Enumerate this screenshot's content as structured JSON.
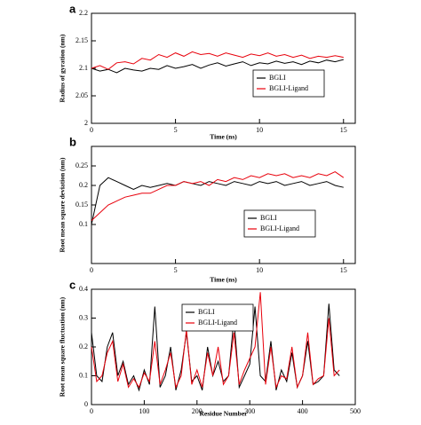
{
  "chart_data": [
    {
      "type": "line",
      "panel_label": "a",
      "x_label": "Time (ns)",
      "y_label": "Radius of gyration (nm)",
      "x": [
        0,
        0.5,
        1,
        1.5,
        2,
        2.5,
        3,
        3.5,
        4,
        4.5,
        5,
        5.5,
        6,
        6.5,
        7,
        7.5,
        8,
        8.5,
        9,
        9.5,
        10,
        10.5,
        11,
        11.5,
        12,
        12.5,
        13,
        13.5,
        14,
        14.5,
        15
      ],
      "series": [
        {
          "name": "BGLI",
          "color": "#000000",
          "values": [
            2.1,
            2.095,
            2.098,
            2.092,
            2.1,
            2.097,
            2.095,
            2.1,
            2.098,
            2.105,
            2.1,
            2.103,
            2.107,
            2.1,
            2.106,
            2.11,
            2.104,
            2.108,
            2.112,
            2.105,
            2.11,
            2.108,
            2.113,
            2.109,
            2.112,
            2.107,
            2.113,
            2.11,
            2.115,
            2.112,
            2.116
          ]
        },
        {
          "name": "BGLI-Ligand",
          "color": "#e8000b",
          "values": [
            2.1,
            2.105,
            2.098,
            2.11,
            2.112,
            2.108,
            2.118,
            2.115,
            2.125,
            2.12,
            2.128,
            2.122,
            2.13,
            2.125,
            2.127,
            2.122,
            2.128,
            2.124,
            2.12,
            2.126,
            2.123,
            2.128,
            2.122,
            2.125,
            2.12,
            2.124,
            2.118,
            2.122,
            2.12,
            2.123,
            2.12
          ]
        }
      ],
      "xlim": [
        0,
        15.7
      ],
      "ylim": [
        2,
        2.2
      ],
      "xticks": [
        0,
        5,
        10,
        15
      ],
      "yticks": [
        2,
        2.05,
        2.1,
        2.15,
        2.2
      ],
      "legend": "center right"
    },
    {
      "type": "line",
      "panel_label": "b",
      "x_label": "Time (ns)",
      "y_label": "Root mean square deviation (nm)",
      "x": [
        0,
        0.5,
        1,
        1.5,
        2,
        2.5,
        3,
        3.5,
        4,
        4.5,
        5,
        5.5,
        6,
        6.5,
        7,
        7.5,
        8,
        8.5,
        9,
        9.5,
        10,
        10.5,
        11,
        11.5,
        12,
        12.5,
        13,
        13.5,
        14,
        14.5,
        15
      ],
      "series": [
        {
          "name": "BGLI",
          "color": "#000000",
          "values": [
            0.1,
            0.2,
            0.22,
            0.21,
            0.2,
            0.19,
            0.2,
            0.195,
            0.2,
            0.205,
            0.2,
            0.21,
            0.205,
            0.2,
            0.21,
            0.205,
            0.2,
            0.21,
            0.205,
            0.2,
            0.21,
            0.205,
            0.21,
            0.2,
            0.205,
            0.21,
            0.2,
            0.205,
            0.21,
            0.2,
            0.195
          ]
        },
        {
          "name": "BGLI-Ligand",
          "color": "#e8000b",
          "values": [
            0.11,
            0.13,
            0.15,
            0.16,
            0.17,
            0.175,
            0.18,
            0.18,
            0.19,
            0.2,
            0.2,
            0.21,
            0.205,
            0.21,
            0.2,
            0.215,
            0.21,
            0.22,
            0.215,
            0.225,
            0.22,
            0.23,
            0.225,
            0.23,
            0.22,
            0.225,
            0.22,
            0.23,
            0.225,
            0.235,
            0.22
          ]
        }
      ],
      "xlim": [
        0,
        15.7
      ],
      "ylim": [
        0,
        0.3
      ],
      "xticks": [
        0,
        5,
        10,
        15
      ],
      "yticks": [
        0.1,
        0.15,
        0.2,
        0.25
      ],
      "legend": "lower right"
    },
    {
      "type": "line",
      "panel_label": "c",
      "x_label": "Residue Number",
      "y_label": "Root mean square fluctuation (nm)",
      "x": [
        0,
        10,
        20,
        30,
        40,
        50,
        60,
        70,
        80,
        90,
        100,
        110,
        120,
        130,
        140,
        150,
        160,
        170,
        180,
        190,
        200,
        210,
        220,
        230,
        240,
        250,
        260,
        270,
        280,
        290,
        300,
        310,
        320,
        330,
        340,
        350,
        360,
        370,
        380,
        390,
        400,
        410,
        420,
        430,
        440,
        450,
        460,
        470
      ],
      "series": [
        {
          "name": "BGLI",
          "color": "#000000",
          "values": [
            0.25,
            0.1,
            0.08,
            0.2,
            0.25,
            0.1,
            0.15,
            0.07,
            0.1,
            0.05,
            0.12,
            0.07,
            0.34,
            0.06,
            0.1,
            0.2,
            0.05,
            0.12,
            0.25,
            0.08,
            0.1,
            0.05,
            0.2,
            0.1,
            0.15,
            0.08,
            0.1,
            0.3,
            0.06,
            0.1,
            0.14,
            0.34,
            0.1,
            0.08,
            0.22,
            0.05,
            0.12,
            0.08,
            0.18,
            0.06,
            0.1,
            0.22,
            0.07,
            0.08,
            0.1,
            0.35,
            0.12,
            0.1
          ]
        },
        {
          "name": "BGLI-Ligand",
          "color": "#e8000b",
          "values": [
            0.2,
            0.08,
            0.1,
            0.18,
            0.22,
            0.08,
            0.14,
            0.06,
            0.09,
            0.06,
            0.11,
            0.08,
            0.22,
            0.07,
            0.12,
            0.18,
            0.06,
            0.1,
            0.26,
            0.07,
            0.12,
            0.06,
            0.18,
            0.1,
            0.2,
            0.07,
            0.1,
            0.25,
            0.07,
            0.12,
            0.16,
            0.2,
            0.39,
            0.07,
            0.2,
            0.06,
            0.1,
            0.09,
            0.2,
            0.06,
            0.1,
            0.25,
            0.07,
            0.09,
            0.1,
            0.3,
            0.1,
            0.12
          ]
        }
      ],
      "xlim": [
        0,
        500
      ],
      "ylim": [
        0,
        0.4
      ],
      "xticks": [
        0,
        100,
        200,
        300,
        400,
        500
      ],
      "yticks": [
        0,
        0.1,
        0.2,
        0.3,
        0.4
      ],
      "legend": "upper center"
    }
  ]
}
